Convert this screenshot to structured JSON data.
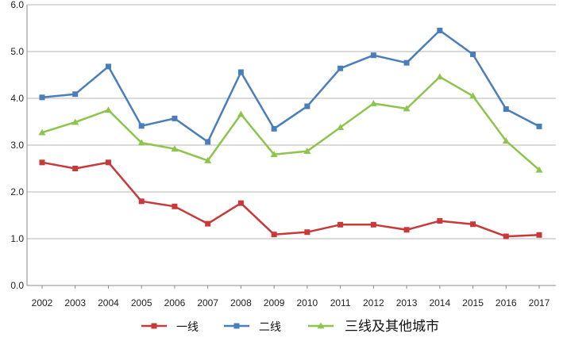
{
  "chart_data": {
    "type": "line",
    "title": "",
    "xlabel": "",
    "ylabel": "",
    "x": [
      "2002",
      "2003",
      "2004",
      "2005",
      "2006",
      "2007",
      "2008",
      "2009",
      "2010",
      "2011",
      "2012",
      "2013",
      "2014",
      "2015",
      "2016",
      "2017"
    ],
    "ylim": [
      0,
      6
    ],
    "yticks": [
      "0.0",
      "1.0",
      "2.0",
      "3.0",
      "4.0",
      "5.0",
      "6.0"
    ],
    "grid": "horizontal",
    "legend": "bottom",
    "series": [
      {
        "name": "一线",
        "color": "#c8393a",
        "marker": "square",
        "values": [
          2.63,
          2.5,
          2.63,
          1.8,
          1.69,
          1.32,
          1.76,
          1.09,
          1.14,
          1.3,
          1.3,
          1.19,
          1.38,
          1.31,
          1.05,
          1.08
        ]
      },
      {
        "name": "二线",
        "color": "#4a7ebb",
        "marker": "square",
        "values": [
          4.02,
          4.09,
          4.68,
          3.41,
          3.57,
          3.07,
          4.56,
          3.35,
          3.83,
          4.64,
          4.92,
          4.76,
          5.45,
          4.94,
          3.77,
          3.4
        ]
      },
      {
        "name": "三线及其他城市",
        "color": "#8dc44c",
        "marker": "triangle",
        "values": [
          3.27,
          3.49,
          3.75,
          3.05,
          2.92,
          2.67,
          3.66,
          2.8,
          2.87,
          3.38,
          3.89,
          3.78,
          4.46,
          4.05,
          3.09,
          2.47
        ]
      }
    ]
  }
}
